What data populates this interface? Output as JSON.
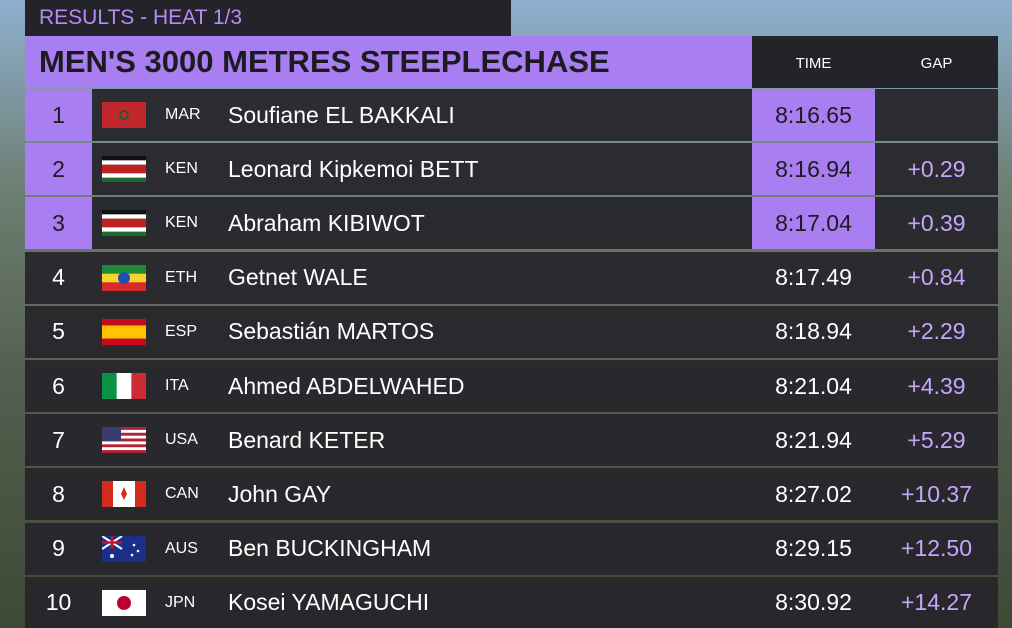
{
  "header": {
    "subtitle": "RESULTS - HEAT 1/3",
    "title": "MEN'S 3000 METRES STEEPLECHASE"
  },
  "columns": [
    "TIME",
    "GAP"
  ],
  "rows": [
    {
      "rank": 1,
      "country": "MAR",
      "name": "Soufiane EL BAKKALI",
      "time": "8:16.65"
    },
    {
      "rank": 2,
      "country": "KEN",
      "name": "Leonard Kipkemoi BETT",
      "time": "8:16.94",
      "gap": "+0.29"
    },
    {
      "rank": 3,
      "country": "KEN",
      "name": "Abraham KIBIWOT",
      "time": "8:17.04",
      "gap": "+0.39"
    },
    {
      "rank": 4,
      "country": "ETH",
      "name": "Getnet WALE",
      "time": "8:17.49",
      "gap": "+0.84"
    },
    {
      "rank": 5,
      "country": "ESP",
      "name": "Sebastián MARTOS",
      "time": "8:18.94",
      "gap": "+2.29"
    },
    {
      "rank": 6,
      "country": "ITA",
      "name": "Ahmed ABDELWAHED",
      "time": "8:21.04",
      "gap": "+4.39"
    },
    {
      "rank": 7,
      "country": "USA",
      "name": "Benard KETER",
      "time": "8:21.94",
      "gap": "+5.29"
    },
    {
      "rank": 8,
      "country": "CAN",
      "name": "John GAY",
      "time": "8:27.02",
      "gap": "+10.37"
    },
    {
      "rank": 9,
      "country": "AUS",
      "name": "Ben BUCKINGHAM",
      "time": "8:29.15",
      "gap": "+12.50"
    },
    {
      "rank": 10,
      "country": "JPN",
      "name": "Kosei YAMAGUCHI",
      "time": "8:30.92",
      "gap": "+14.27"
    }
  ]
}
